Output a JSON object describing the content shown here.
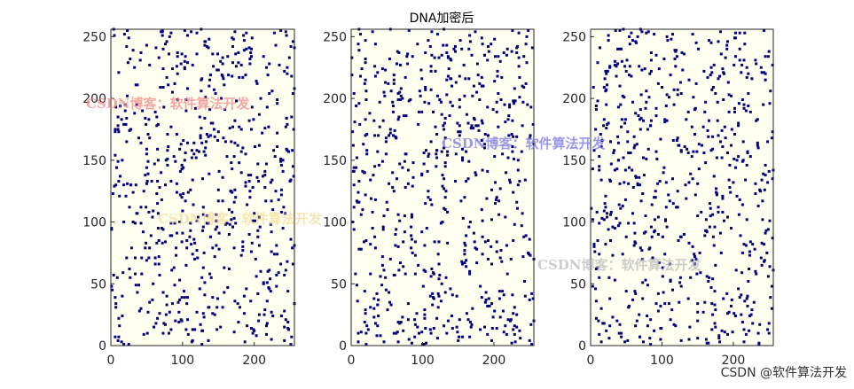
{
  "figure": {
    "title": "DNA加密后",
    "footer_watermark": "CSDN @软件算法开发"
  },
  "watermarks": [
    {
      "text": "CSDN博客：软件算法开发",
      "color": "#f08a8a"
    },
    {
      "text": "CSDN博客：软件算法开发",
      "color": "#f2d27a"
    },
    {
      "text": "CSDN博客：软件算法开发",
      "color": "#7f7fe6"
    },
    {
      "text": "CSDN博客：软件算法开发",
      "color": "#b8b8b8"
    }
  ],
  "colors": {
    "marker": "#00007f",
    "axis": "#262626",
    "background": "#fffff0"
  },
  "chart_data": [
    {
      "type": "scatter",
      "title": "",
      "xlabel": "",
      "ylabel": "",
      "xlim": [
        0,
        256
      ],
      "ylim": [
        0,
        256
      ],
      "xticks": [
        0,
        100,
        200
      ],
      "yticks": [
        0,
        50,
        100,
        150,
        200,
        250
      ],
      "grid": false,
      "points": {
        "count": 650,
        "distribution": "uniform",
        "seed": 11,
        "x_range": [
          1,
          256
        ],
        "y_range": [
          1,
          256
        ]
      }
    },
    {
      "type": "scatter",
      "title": "DNA加密后",
      "xlabel": "",
      "ylabel": "",
      "xlim": [
        0,
        256
      ],
      "ylim": [
        0,
        256
      ],
      "xticks": [
        0,
        100,
        200
      ],
      "yticks": [
        0,
        50,
        100,
        150,
        200,
        250
      ],
      "grid": false,
      "points": {
        "count": 650,
        "distribution": "uniform",
        "seed": 23,
        "x_range": [
          1,
          256
        ],
        "y_range": [
          1,
          256
        ]
      }
    },
    {
      "type": "scatter",
      "title": "",
      "xlabel": "",
      "ylabel": "",
      "xlim": [
        0,
        256
      ],
      "ylim": [
        0,
        256
      ],
      "xticks": [
        0,
        100,
        200
      ],
      "yticks": [
        0,
        50,
        100,
        150,
        200,
        250
      ],
      "grid": false,
      "points": {
        "count": 650,
        "distribution": "uniform",
        "seed": 37,
        "x_range": [
          1,
          256
        ],
        "y_range": [
          1,
          256
        ]
      }
    }
  ]
}
